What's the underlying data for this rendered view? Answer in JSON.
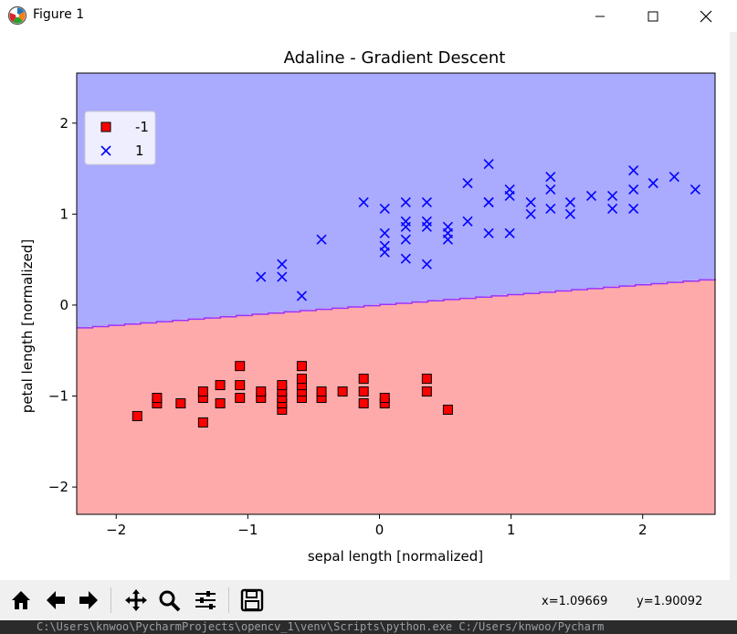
{
  "window": {
    "title": "Figure 1",
    "minimize_icon": "minimize-icon",
    "maximize_icon": "maximize-icon",
    "close_icon": "close-icon"
  },
  "colors": {
    "region_neg": "#ffaaaa",
    "region_pos": "#aaaaff",
    "boundary": "#9933ff",
    "marker_neg": "#ff0000",
    "marker_pos": "#0000ff"
  },
  "chart_data": {
    "type": "scatter",
    "title": "Adaline - Gradient Descent",
    "xlabel": "sepal length [normalized]",
    "ylabel": "petal length [normalized]",
    "xlim": [
      -2.3,
      2.55
    ],
    "ylim": [
      -2.3,
      2.55
    ],
    "xticks": [
      -2,
      -1,
      0,
      1,
      2
    ],
    "yticks": [
      -2,
      -1,
      0,
      1,
      2
    ],
    "legend": {
      "placement": "top-left",
      "entries": [
        "-1",
        "1"
      ]
    },
    "decision_boundary": {
      "x": [
        -2.3,
        2.55
      ],
      "y": [
        -0.25,
        0.29
      ]
    },
    "regions": {
      "above": "1",
      "below": "-1"
    },
    "series": [
      {
        "name": "-1",
        "marker": "square",
        "color": "#ff0000",
        "points": [
          [
            -1.84,
            -1.22
          ],
          [
            -1.69,
            -1.08
          ],
          [
            -1.69,
            -1.02
          ],
          [
            -1.51,
            -1.08
          ],
          [
            -1.34,
            -1.29
          ],
          [
            -1.34,
            -1.02
          ],
          [
            -1.34,
            -0.95
          ],
          [
            -1.21,
            -1.08
          ],
          [
            -1.21,
            -0.88
          ],
          [
            -1.06,
            -1.02
          ],
          [
            -1.06,
            -0.88
          ],
          [
            -1.06,
            -0.67
          ],
          [
            -0.9,
            -1.02
          ],
          [
            -0.9,
            -0.95
          ],
          [
            -0.74,
            -1.15
          ],
          [
            -0.74,
            -1.08
          ],
          [
            -0.74,
            -1.02
          ],
          [
            -0.74,
            -0.95
          ],
          [
            -0.74,
            -0.88
          ],
          [
            -0.59,
            -1.02
          ],
          [
            -0.59,
            -0.95
          ],
          [
            -0.59,
            -0.88
          ],
          [
            -0.59,
            -0.81
          ],
          [
            -0.59,
            -0.67
          ],
          [
            -0.44,
            -1.02
          ],
          [
            -0.44,
            -0.95
          ],
          [
            -0.28,
            -0.95
          ],
          [
            -0.12,
            -1.08
          ],
          [
            -0.12,
            -0.95
          ],
          [
            -0.12,
            -0.81
          ],
          [
            0.04,
            -1.08
          ],
          [
            0.04,
            -1.02
          ],
          [
            0.36,
            -0.95
          ],
          [
            0.36,
            -0.81
          ],
          [
            0.52,
            -1.15
          ]
        ]
      },
      {
        "name": "1",
        "marker": "x",
        "color": "#0000ff",
        "points": [
          [
            -0.9,
            0.31
          ],
          [
            -0.74,
            0.31
          ],
          [
            -0.74,
            0.45
          ],
          [
            -0.59,
            0.1
          ],
          [
            -0.44,
            0.72
          ],
          [
            -0.12,
            1.13
          ],
          [
            0.04,
            0.58
          ],
          [
            0.04,
            0.65
          ],
          [
            0.04,
            0.79
          ],
          [
            0.04,
            1.06
          ],
          [
            0.2,
            0.51
          ],
          [
            0.2,
            0.72
          ],
          [
            0.2,
            0.86
          ],
          [
            0.2,
            0.92
          ],
          [
            0.2,
            1.13
          ],
          [
            0.36,
            0.45
          ],
          [
            0.36,
            0.86
          ],
          [
            0.36,
            0.92
          ],
          [
            0.36,
            1.13
          ],
          [
            0.52,
            0.72
          ],
          [
            0.52,
            0.79
          ],
          [
            0.52,
            0.86
          ],
          [
            0.67,
            0.92
          ],
          [
            0.67,
            1.34
          ],
          [
            0.83,
            0.79
          ],
          [
            0.83,
            1.13
          ],
          [
            0.83,
            1.13
          ],
          [
            0.83,
            1.55
          ],
          [
            0.99,
            0.79
          ],
          [
            0.99,
            1.2
          ],
          [
            0.99,
            1.27
          ],
          [
            1.15,
            1.0
          ],
          [
            1.15,
            1.13
          ],
          [
            1.3,
            1.06
          ],
          [
            1.3,
            1.27
          ],
          [
            1.3,
            1.41
          ],
          [
            1.45,
            1.0
          ],
          [
            1.45,
            1.13
          ],
          [
            1.61,
            1.2
          ],
          [
            1.77,
            1.06
          ],
          [
            1.77,
            1.2
          ],
          [
            1.93,
            1.06
          ],
          [
            1.93,
            1.27
          ],
          [
            1.93,
            1.48
          ],
          [
            2.08,
            1.34
          ],
          [
            2.24,
            1.41
          ],
          [
            2.4,
            1.27
          ]
        ]
      }
    ]
  },
  "toolbar": {
    "buttons": [
      {
        "name": "home-button",
        "icon": "home-icon"
      },
      {
        "name": "back-button",
        "icon": "arrow-left-icon"
      },
      {
        "name": "forward-button",
        "icon": "arrow-right-icon"
      },
      {
        "name": "pan-button",
        "icon": "move-icon"
      },
      {
        "name": "zoom-button",
        "icon": "magnifier-icon"
      },
      {
        "name": "configure-button",
        "icon": "sliders-icon"
      },
      {
        "name": "save-button",
        "icon": "floppy-disk-icon"
      }
    ],
    "coord_x": "x=1.09669",
    "coord_y": "y=1.90092"
  },
  "terminal": {
    "text": "C:\\Users\\knwoo\\PycharmProjects\\opencv_1\\venv\\Scripts\\python.exe C:/Users/knwoo/Pycharm"
  }
}
